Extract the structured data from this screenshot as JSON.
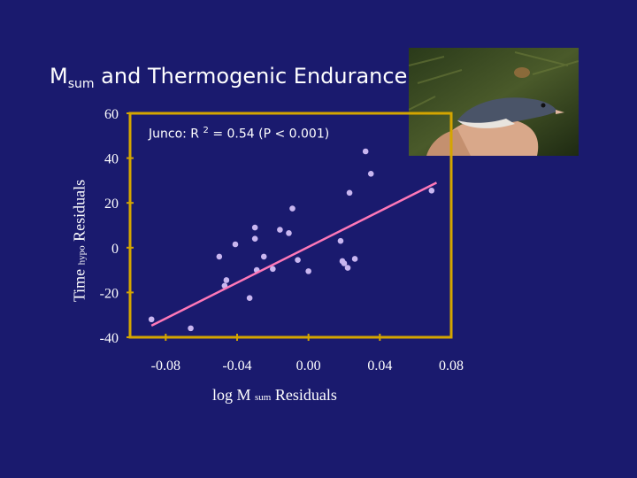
{
  "slide": {
    "title_main": "M",
    "title_sub": "sum",
    "title_rest": " and Thermogenic Endurance",
    "bg_color": "#1a1a6e",
    "photo_icon": "junco-bird-in-hand-photo"
  },
  "chart_data": {
    "type": "scatter",
    "title": "",
    "annotation": {
      "prefix": "Junco: R",
      "sup": "2",
      "suffix": " = 0.54 (P < 0.001)"
    },
    "xlabel": {
      "main": "log M",
      "sub": "sum",
      "rest": "  Residuals"
    },
    "ylabel": {
      "main": "Time",
      "sub": "hypo",
      "rest": "Residuals"
    },
    "xlim": [
      -0.1,
      0.08
    ],
    "ylim": [
      -40,
      60
    ],
    "xticks": [
      -0.08,
      -0.04,
      0.0,
      0.04,
      0.08
    ],
    "xtick_labels": [
      "-0.08",
      "-0.04",
      "0.00",
      "0.04",
      "0.08"
    ],
    "yticks": [
      60,
      40,
      20,
      0,
      -20,
      -40
    ],
    "ytick_labels": [
      "60",
      "40",
      "20",
      "0",
      "-20",
      "-40"
    ],
    "grid": false,
    "series": [
      {
        "points": [
          [
            -0.088,
            -32
          ],
          [
            -0.066,
            -36
          ],
          [
            -0.05,
            -4
          ],
          [
            -0.047,
            -17
          ],
          [
            -0.046,
            -14.5
          ],
          [
            -0.041,
            1.5
          ],
          [
            -0.033,
            -22.5
          ],
          [
            -0.029,
            -10
          ],
          [
            -0.03,
            4
          ],
          [
            -0.03,
            9
          ],
          [
            -0.025,
            -4
          ],
          [
            -0.02,
            -9.5
          ],
          [
            -0.016,
            8
          ],
          [
            -0.011,
            6.5
          ],
          [
            -0.009,
            17.5
          ],
          [
            -0.006,
            -5.5
          ],
          [
            0.0,
            -10.5
          ],
          [
            0.018,
            3
          ],
          [
            0.019,
            -6
          ],
          [
            0.02,
            -7
          ],
          [
            0.022,
            -9
          ],
          [
            0.023,
            24.5
          ],
          [
            0.026,
            -5
          ],
          [
            0.032,
            43
          ],
          [
            0.035,
            33
          ],
          [
            0.069,
            25.5
          ]
        ]
      }
    ],
    "fit_line": {
      "x": [
        -0.088,
        0.0718
      ],
      "y": [
        -34.8,
        29.0
      ]
    },
    "colors": {
      "points": "#c9b6f0",
      "fit_line": "#ff78b8",
      "frame": "#d4a500",
      "text": "#ffffff"
    }
  }
}
